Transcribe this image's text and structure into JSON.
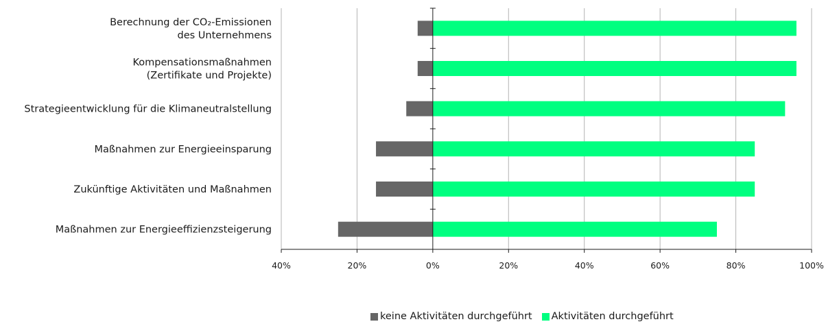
{
  "chart_data": {
    "type": "bar",
    "orientation": "horizontal",
    "stacked": "diverging",
    "categories": [
      [
        "Berechnung der CO₂-Emissionen",
        "des Unternehmens"
      ],
      [
        "Kompensationsmaßnahmen",
        "(Zertifikate und Projekte)"
      ],
      [
        "Strategieentwicklung für die Klimaneutralstellung"
      ],
      [
        "Maßnahmen zur Energieeinsparung"
      ],
      [
        "Zukünftige Aktivitäten und Maßnahmen"
      ],
      [
        "Maßnahmen zur Energieeffizienzsteigerung"
      ]
    ],
    "series": [
      {
        "name": "keine Aktivitäten durchgeführt",
        "color": "#666666",
        "values": [
          -4,
          -4,
          -7,
          -15,
          -15,
          -25
        ]
      },
      {
        "name": "Aktivitäten durchgeführt",
        "color": "#00ff80",
        "values": [
          96,
          96,
          93,
          85,
          85,
          75
        ]
      }
    ],
    "xlim": [
      -40,
      100
    ],
    "xticks": [
      -40,
      -20,
      0,
      20,
      40,
      60,
      80,
      100
    ],
    "xtick_labels": [
      "40%",
      "20%",
      "0%",
      "20%",
      "40%",
      "60%",
      "80%",
      "100%"
    ],
    "grid": "vertical",
    "legend_position": "bottom",
    "title": "",
    "xlabel": "",
    "ylabel": ""
  }
}
